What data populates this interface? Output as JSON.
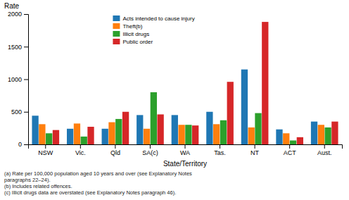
{
  "chart_data": {
    "type": "bar",
    "xlabel": "State/Territory",
    "ylabel": "Rate",
    "categories": [
      "NSW",
      "Vic.",
      "Qld",
      "SA(c)",
      "WA",
      "Tas.",
      "NT",
      "ACT",
      "Aust."
    ],
    "series": [
      {
        "name": "Acts intended to cause injury",
        "values": [
          440,
          240,
          240,
          450,
          450,
          500,
          1150,
          230,
          350
        ]
      },
      {
        "name": "Theft(b)",
        "values": [
          310,
          320,
          340,
          240,
          300,
          310,
          260,
          170,
          300
        ]
      },
      {
        "name": "Illicit drugs",
        "values": [
          170,
          120,
          390,
          800,
          300,
          370,
          480,
          60,
          260
        ]
      },
      {
        "name": "Public order",
        "values": [
          220,
          270,
          500,
          460,
          290,
          960,
          1880,
          110,
          350
        ]
      }
    ],
    "ylim": [
      0,
      2000
    ],
    "yticks": [
      0,
      500,
      1000,
      1500,
      2000
    ],
    "grid": false,
    "legend": "upper left",
    "annotations": [
      "(a) Rate per 100,000 population aged 10 years and over (see Explanatory Notes",
      "paragraphs 22–24).",
      "(b) Includes related offences.",
      "(c) Illicit drugs data are overstated (see Explanatory Notes paragraph 46)."
    ]
  }
}
